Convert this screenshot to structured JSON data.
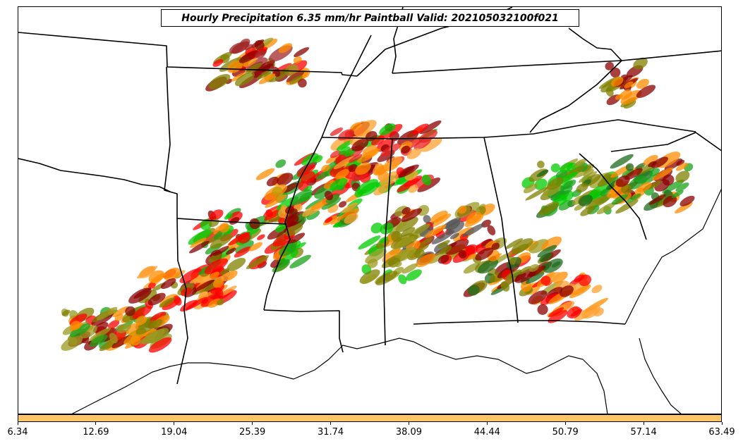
{
  "title": "Hourly Precipitation 6.35 mm/hr Paintball Valid: 202105032100f021",
  "colorbar": {
    "color": "#ffc566",
    "tick_labels": [
      "6.34",
      "12.69",
      "19.04",
      "25.39",
      "31.74",
      "38.09",
      "44.44",
      "50.79",
      "57.14",
      "63.49"
    ]
  },
  "member_colors": [
    "#1aa31a",
    "#00cc00",
    "#1e6b1e",
    "#808000",
    "#9a9a20",
    "#ff8c00",
    "#ffa030",
    "#ff0000",
    "#e82020",
    "#8b0000",
    "#a02828",
    "#555555"
  ]
}
